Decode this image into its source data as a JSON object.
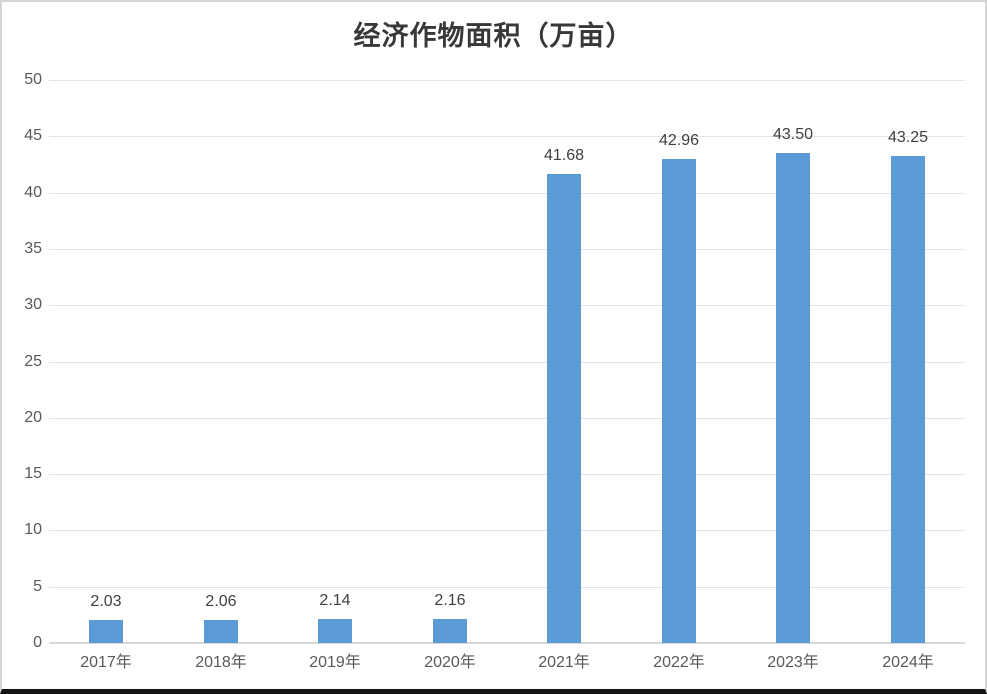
{
  "chart_data": {
    "type": "bar",
    "title": "经济作物面积（万亩）",
    "categories": [
      "2017年",
      "2018年",
      "2019年",
      "2020年",
      "2021年",
      "2022年",
      "2023年",
      "2024年"
    ],
    "values": [
      2.03,
      2.06,
      2.14,
      2.16,
      41.68,
      42.96,
      43.5,
      43.25
    ],
    "value_labels": [
      "2.03",
      "2.06",
      "2.14",
      "2.16",
      "41.68",
      "42.96",
      "43.50",
      "43.25"
    ],
    "series_name": "经济作物面积",
    "xlabel": "",
    "ylabel": "",
    "ylim": [
      0,
      50
    ],
    "ytick_step": 5,
    "ytick_labels": [
      "0",
      "5",
      "10",
      "15",
      "20",
      "25",
      "30",
      "35",
      "40",
      "45",
      "50"
    ],
    "grid": "horizontal",
    "legend": "none",
    "bar_color": "#5b9bd5",
    "gridline_color": "#e4e4e4",
    "axis_text_color": "#595959",
    "value_label_color": "#404040",
    "title_color": "#383838"
  }
}
